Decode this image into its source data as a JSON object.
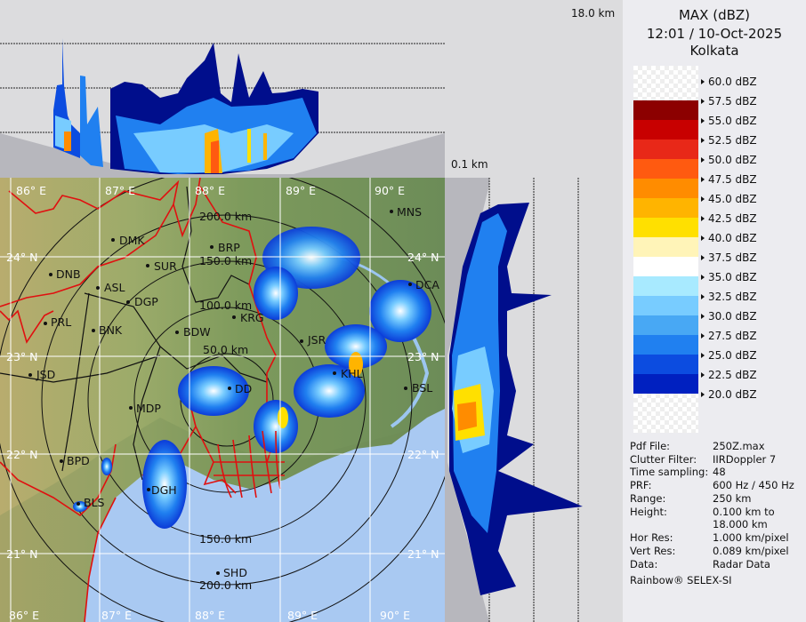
{
  "header": {
    "product": "MAX (dBZ)",
    "datetime": "12:01 / 10-Oct-2025",
    "station": "Kolkata"
  },
  "legend": {
    "levels": [
      {
        "label": "60.0 dBZ",
        "color": null
      },
      {
        "label": "57.5 dBZ",
        "color": "#8c0000"
      },
      {
        "label": "55.0 dBZ",
        "color": "#c80000"
      },
      {
        "label": "52.5 dBZ",
        "color": "#e82818"
      },
      {
        "label": "50.0 dBZ",
        "color": "#ff5a10"
      },
      {
        "label": "47.5 dBZ",
        "color": "#ff8c00"
      },
      {
        "label": "45.0 dBZ",
        "color": "#ffb400"
      },
      {
        "label": "42.5 dBZ",
        "color": "#ffe000"
      },
      {
        "label": "40.0 dBZ",
        "color": "#fff4b8"
      },
      {
        "label": "37.5 dBZ",
        "color": "#ffffff"
      },
      {
        "label": "35.0 dBZ",
        "color": "#a8eaff"
      },
      {
        "label": "32.5 dBZ",
        "color": "#78ccff"
      },
      {
        "label": "30.0 dBZ",
        "color": "#48a8f4"
      },
      {
        "label": "27.5 dBZ",
        "color": "#2080f0"
      },
      {
        "label": "25.0 dBZ",
        "color": "#0c4ce0"
      },
      {
        "label": "22.5 dBZ",
        "color": "#0020c0"
      },
      {
        "label": "20.0 dBZ",
        "color": "#000e8c"
      }
    ]
  },
  "info": [
    {
      "key": "Pdf File:",
      "value": "250Z.max"
    },
    {
      "key": "Clutter Filter:",
      "value": "IIRDoppler 7"
    },
    {
      "key": "Time sampling:",
      "value": "48"
    },
    {
      "key": "PRF:",
      "value": "600 Hz / 450 Hz"
    },
    {
      "key": "Range:",
      "value": "250 km"
    },
    {
      "key": "Height:",
      "value": "0.100 km to"
    },
    {
      "key": "",
      "value": "18.000 km"
    },
    {
      "key": "Hor Res:",
      "value": "1.000 km/pixel"
    },
    {
      "key": "Vert Res:",
      "value": "0.089 km/pixel"
    },
    {
      "key": "Data:",
      "value": "Radar Data"
    }
  ],
  "footer": "Rainbow® SELEX-SI",
  "profile": {
    "top_height": "18.0 km",
    "bottom_height": "0.1 km"
  },
  "map": {
    "lon_labels": [
      "86° E",
      "87° E",
      "88° E",
      "89° E",
      "90° E"
    ],
    "lat_labels": [
      "24° N",
      "23° N",
      "22° N",
      "21° N"
    ],
    "ring_labels": [
      "50.0 km",
      "100.0 km",
      "150.0 km",
      "200.0 km"
    ],
    "cities": [
      "MNS",
      "DMK",
      "BRP",
      "SUR",
      "DNB",
      "ASL",
      "DGP",
      "KRG",
      "PRL",
      "BNK",
      "BDW",
      "JSR",
      "DCA",
      "KHL",
      "BSL",
      "JSD",
      "MDP",
      "BPD",
      "DGH",
      "BLS",
      "SHD",
      "DD"
    ],
    "colors": {
      "land": "#7d9a5c",
      "sea": "#a9c9f2",
      "border": "#e01010",
      "district": "#111111",
      "grid": "#ffffff"
    }
  }
}
